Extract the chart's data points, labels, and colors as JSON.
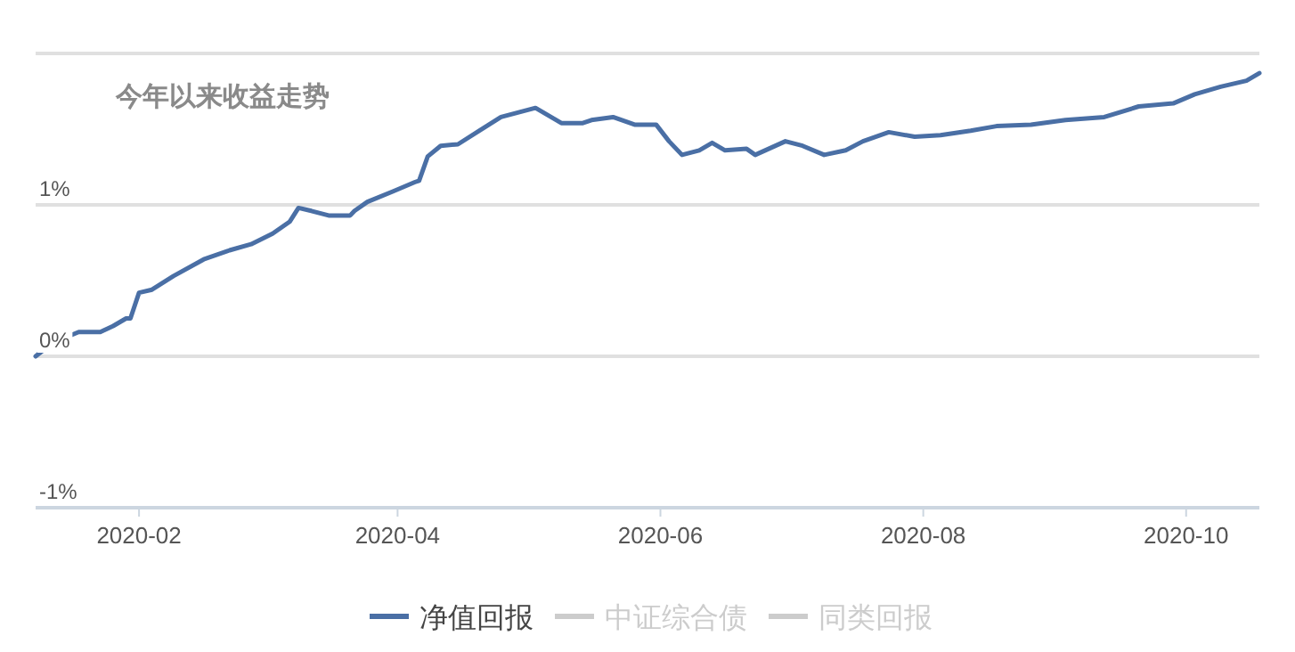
{
  "chart_data": {
    "type": "line",
    "title": "今年以来收益走势",
    "x": [
      "2020-01-08",
      "2020-01-12",
      "2020-01-18",
      "2020-01-23",
      "2020-01-26",
      "2020-01-29",
      "2020-01-30",
      "2020-02-01",
      "2020-02-04",
      "2020-02-09",
      "2020-02-16",
      "2020-02-22",
      "2020-02-27",
      "2020-03-03",
      "2020-03-07",
      "2020-03-09",
      "2020-03-12",
      "2020-03-16",
      "2020-03-21",
      "2020-03-22",
      "2020-03-25",
      "2020-03-31",
      "2020-04-05",
      "2020-04-06",
      "2020-04-08",
      "2020-04-11",
      "2020-04-15",
      "2020-04-20",
      "2020-04-25",
      "2020-05-03",
      "2020-05-09",
      "2020-05-14",
      "2020-05-16",
      "2020-05-21",
      "2020-05-26",
      "2020-05-31",
      "2020-06-03",
      "2020-06-06",
      "2020-06-10",
      "2020-06-13",
      "2020-06-16",
      "2020-06-21",
      "2020-06-23",
      "2020-06-30",
      "2020-07-04",
      "2020-07-09",
      "2020-07-14",
      "2020-07-18",
      "2020-07-24",
      "2020-07-30",
      "2020-08-05",
      "2020-08-12",
      "2020-08-18",
      "2020-08-26",
      "2020-09-03",
      "2020-09-12",
      "2020-09-20",
      "2020-09-28",
      "2020-10-03",
      "2020-10-09",
      "2020-10-15",
      "2020-10-18"
    ],
    "series": [
      {
        "name": "净值回报",
        "color": "#4a6fa5",
        "values": [
          0.0,
          0.09,
          0.16,
          0.16,
          0.2,
          0.25,
          0.25,
          0.42,
          0.44,
          0.53,
          0.64,
          0.7,
          0.74,
          0.81,
          0.89,
          0.98,
          0.96,
          0.93,
          0.93,
          0.96,
          1.02,
          1.09,
          1.15,
          1.16,
          1.32,
          1.39,
          1.4,
          1.49,
          1.58,
          1.64,
          1.54,
          1.54,
          1.56,
          1.58,
          1.53,
          1.53,
          1.42,
          1.33,
          1.36,
          1.41,
          1.36,
          1.37,
          1.33,
          1.42,
          1.39,
          1.33,
          1.36,
          1.42,
          1.48,
          1.45,
          1.46,
          1.49,
          1.52,
          1.53,
          1.56,
          1.58,
          1.65,
          1.67,
          1.73,
          1.78,
          1.82,
          1.87
        ]
      },
      {
        "name": "中证综合债",
        "color": "#cccccc",
        "values": [
          null,
          null,
          null,
          null,
          null,
          null,
          null,
          null,
          null,
          null,
          null,
          null,
          null,
          null,
          null,
          null,
          null,
          null,
          null,
          null,
          null,
          null,
          null,
          null,
          null,
          null,
          null,
          null,
          null,
          null,
          null,
          null,
          null,
          null,
          null,
          null,
          null,
          null,
          null,
          null,
          null,
          null,
          null,
          null,
          null,
          null,
          null,
          null,
          null,
          null,
          null,
          null,
          null,
          null,
          null,
          null,
          null,
          null,
          null,
          null,
          null,
          null
        ]
      },
      {
        "name": "同类回报",
        "color": "#cccccc",
        "values": [
          null,
          null,
          null,
          null,
          null,
          null,
          null,
          null,
          null,
          null,
          null,
          null,
          null,
          null,
          null,
          null,
          null,
          null,
          null,
          null,
          null,
          null,
          null,
          null,
          null,
          null,
          null,
          null,
          null,
          null,
          null,
          null,
          null,
          null,
          null,
          null,
          null,
          null,
          null,
          null,
          null,
          null,
          null,
          null,
          null,
          null,
          null,
          null,
          null,
          null,
          null,
          null,
          null,
          null,
          null,
          null,
          null,
          null,
          null,
          null,
          null,
          null
        ]
      }
    ],
    "xlim": [
      "2020-01-08",
      "2020-10-18"
    ],
    "xticks": [
      "2020-02",
      "2020-04",
      "2020-06",
      "2020-08",
      "2020-10"
    ],
    "ylim": [
      -1,
      2
    ],
    "yticks": [
      {
        "value": -1,
        "label": "-1%"
      },
      {
        "value": 0,
        "label": "0%"
      },
      {
        "value": 1,
        "label": "1%"
      },
      {
        "value": 2,
        "label": null
      }
    ],
    "grid": "y",
    "legend": "bottom"
  }
}
